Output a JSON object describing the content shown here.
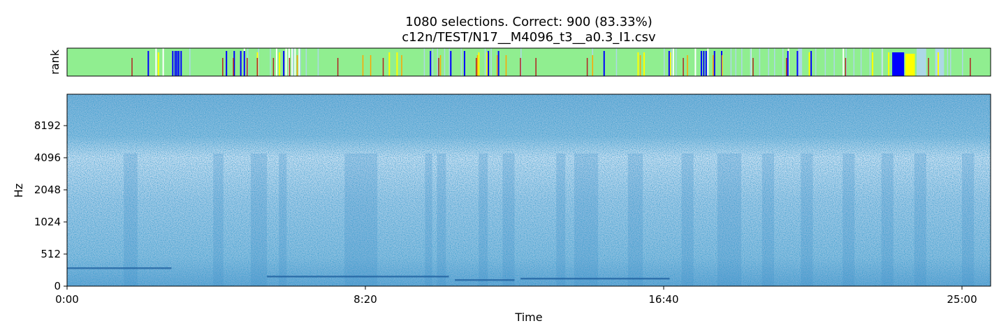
{
  "chart_data": [
    {
      "type": "heatmap",
      "title": "1080 selections.  Correct: 900 (83.33%)",
      "subtitle": "c12n/TEST/N17__M4096_t3__a0.3_I1.csv",
      "panel": "rank strip",
      "ylabel": "rank",
      "colors": {
        "background": "#90ee90",
        "blue": "#0000ff",
        "light_blue": "#add8e6",
        "yellow": "#ffff00",
        "white": "#ffffff",
        "orange": "#ffa500",
        "dark_red": "#b22222"
      },
      "x_range_seconds": [
        0,
        1548
      ],
      "note_marks_seconds": {
        "wide_blue": [
          [
            1383,
            1403
          ]
        ],
        "wide_yellow": [
          [
            1405,
            1421
          ]
        ],
        "wide_light_blue": [
          [
            1225,
            1232
          ],
          [
            1424,
            1440
          ],
          [
            1455,
            1470
          ]
        ],
        "blue": [
          135,
          176,
          180,
          183,
          186,
          190,
          266,
          279,
          290,
          296,
          362,
          608,
          642,
          665,
          705,
          722,
          899,
          1008,
          1062,
          1066,
          1070,
          1084,
          1096,
          1207,
          1223,
          1246
        ],
        "yellow": [
          152,
          318,
          355,
          539,
          552,
          689,
          703,
          956,
          966,
          1010,
          1084,
          1243,
          1349,
          1376,
          1459
        ],
        "white": [
          148,
          160,
          296,
          350,
          366,
          371,
          376,
          381,
          388,
          1015,
          1052,
          1073,
          1145,
          1208,
          1300,
          1365
        ],
        "light_blue": [
          205,
          302,
          320,
          340,
          378,
          390,
          400,
          420,
          598,
          612,
          620,
          632,
          640,
          660,
          700,
          710,
          760,
          880,
          920,
          1000,
          1012,
          1020,
          1112,
          1120,
          1130,
          1145,
          1160,
          1175,
          1185,
          1199,
          1254,
          1270,
          1285,
          1305,
          1318,
          1330,
          1345,
          1365,
          1475,
          1480,
          1500
        ],
        "orange": [
          385,
          495,
          508,
          560,
          625,
          687,
          720,
          735,
          880,
          960,
          1039,
          1082,
          1097
        ],
        "dark_red": [
          108,
          260,
          278,
          301,
          318,
          345,
          372,
          453,
          529,
          622,
          685,
          759,
          785,
          871,
          1032,
          1149,
          1205,
          1304,
          1443,
          1513
        ]
      }
    },
    {
      "type": "heatmap",
      "panel": "spectrogram",
      "xlabel": "Time",
      "ylabel": "Hz",
      "x_range_seconds": [
        0,
        1548
      ],
      "x_ticks": [
        "0:00",
        "8:20",
        "16:40",
        "25:00"
      ],
      "x_tick_values_seconds": [
        0,
        500,
        1000,
        1500
      ],
      "y_ticks": [
        "0",
        "512",
        "1024",
        "2048",
        "4096",
        "8192"
      ],
      "colormap": "Blues",
      "colors": {
        "high": "#08519c",
        "mid": "#6baed6",
        "low": "#f7fbff"
      },
      "vertical_dark_bands_seconds": [
        [
          95,
          118
        ],
        [
          245,
          262
        ],
        [
          308,
          335
        ],
        [
          355,
          368
        ],
        [
          465,
          520
        ],
        [
          600,
          612
        ],
        [
          620,
          635
        ],
        [
          690,
          705
        ],
        [
          730,
          750
        ],
        [
          820,
          835
        ],
        [
          850,
          890
        ],
        [
          940,
          965
        ],
        [
          1030,
          1050
        ],
        [
          1090,
          1130
        ],
        [
          1165,
          1185
        ],
        [
          1230,
          1250
        ],
        [
          1300,
          1320
        ],
        [
          1365,
          1385
        ],
        [
          1420,
          1440
        ],
        [
          1500,
          1520
        ]
      ],
      "low_frequency_line_seconds": [
        [
          0,
          175
        ],
        [
          335,
          640
        ],
        [
          650,
          750
        ],
        [
          760,
          1010
        ]
      ]
    }
  ]
}
